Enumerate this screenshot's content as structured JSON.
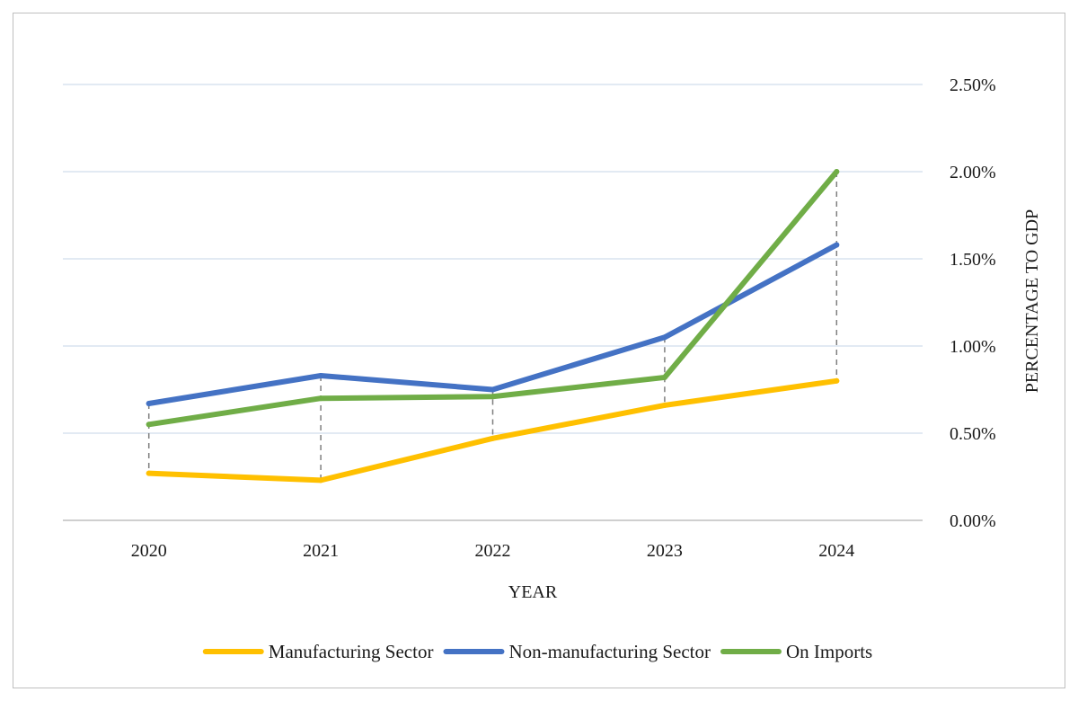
{
  "chart_data": {
    "type": "line",
    "categories": [
      "2020",
      "2021",
      "2022",
      "2023",
      "2024"
    ],
    "xlabel": "YEAR",
    "ylabel": "PERCENTAGE TO GDP",
    "ylim": [
      0,
      2.5
    ],
    "yticks": [
      0,
      0.5,
      1.0,
      1.5,
      2.0,
      2.5
    ],
    "ytick_labels": [
      "0.00%",
      "0.50%",
      "1.00%",
      "1.50%",
      "2.00%",
      "2.50%"
    ],
    "y_axis_position": "right",
    "grid": true,
    "drop_lines": true,
    "legend_position": "bottom",
    "series": [
      {
        "name": "Manufacturing Sector",
        "color": "#FFC000",
        "values": [
          0.27,
          0.23,
          0.47,
          0.66,
          0.8
        ]
      },
      {
        "name": "Non-manufacturing Sector",
        "color": "#4472C4",
        "values": [
          0.67,
          0.83,
          0.75,
          1.05,
          1.58
        ]
      },
      {
        "name": "On Imports",
        "color": "#70AD47",
        "values": [
          0.55,
          0.7,
          0.71,
          0.82,
          2.0
        ]
      }
    ]
  }
}
